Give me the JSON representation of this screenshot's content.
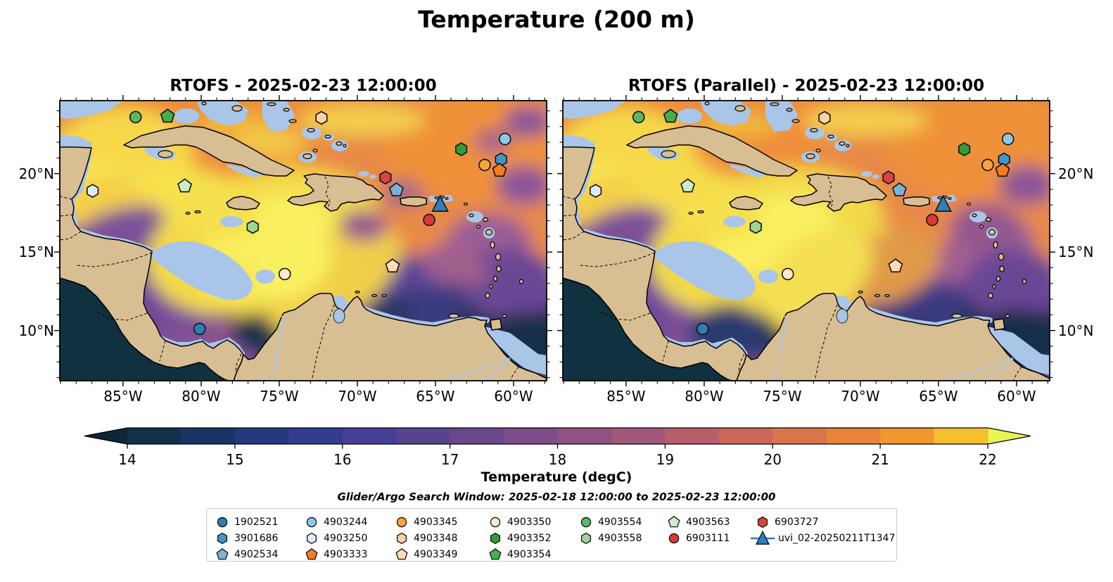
{
  "figure": {
    "title": "Temperature (200 m)"
  },
  "panels": [
    {
      "id": "rtofs",
      "title": "RTOFS - 2025-02-23 12:00:00",
      "y_label_side": "left"
    },
    {
      "id": "rtofs_parallel",
      "title": "RTOFS (Parallel) - 2025-02-23 12:00:00",
      "y_label_side": "right"
    }
  ],
  "axes": {
    "extent": {
      "lon_min": -89.05,
      "lon_max": -57.88,
      "lat_min": 6.8,
      "lat_max": 24.65
    },
    "x_ticks": [
      {
        "value": -85,
        "label": "85°W"
      },
      {
        "value": -80,
        "label": "80°W"
      },
      {
        "value": -75,
        "label": "75°W"
      },
      {
        "value": -70,
        "label": "70°W"
      },
      {
        "value": -65,
        "label": "65°W"
      },
      {
        "value": -60,
        "label": "60°W"
      }
    ],
    "y_ticks": [
      {
        "value": 20,
        "label": "20°N"
      },
      {
        "value": 15,
        "label": "15°N"
      },
      {
        "value": 10,
        "label": "10°N"
      }
    ]
  },
  "colorbar": {
    "label": "Temperature (degC)",
    "ticks": [
      14,
      15,
      16,
      17,
      18,
      19,
      20,
      21,
      22
    ],
    "segment_colors": [
      "#13304b",
      "#1a3465",
      "#24387f",
      "#323c90",
      "#444094",
      "#564491",
      "#69488e",
      "#7c4d89",
      "#8f5282",
      "#a25878",
      "#b65f6b",
      "#c8695c",
      "#d9754b",
      "#e8833a",
      "#f2962e",
      "#f5c030"
    ],
    "under_color": "#0b2838",
    "over_color": "#e9f452"
  },
  "subtitle": "Glider/Argo Search Window: 2025-02-18 12:00:00 to 2025-02-23 12:00:00",
  "map_colors": {
    "land": "#d8be93",
    "shallow": "#a9c6e8",
    "coastline": "#000000",
    "pacific_deep": "#103140"
  },
  "legend": {
    "columns": [
      [
        "1902521",
        "3901686",
        "4902534"
      ],
      [
        "4903244",
        "4903250",
        "4903333"
      ],
      [
        "4903345",
        "4903348",
        "4903349"
      ],
      [
        "4903350",
        "4903352",
        "4903354"
      ],
      [
        "4903554",
        "4903558"
      ],
      [
        "4903563",
        "6903111"
      ],
      [
        "6903727",
        "uvi_02-20250211T1347"
      ]
    ]
  },
  "chart_data": [
    {
      "type": "heatmap",
      "name": "RTOFS",
      "title": "RTOFS - 2025-02-23 12:00:00",
      "value_label": "Temperature (degC)",
      "vmin": 14,
      "vmax": 22,
      "colorbar_ticks": [
        14,
        15,
        16,
        17,
        18,
        19,
        20,
        21,
        22
      ],
      "lon_range": [
        -89.05,
        -57.88
      ],
      "lat_range": [
        6.8,
        24.65
      ]
    },
    {
      "type": "heatmap",
      "name": "RTOFS (Parallel)",
      "title": "RTOFS (Parallel) - 2025-02-23 12:00:00",
      "value_label": "Temperature (degC)",
      "vmin": 14,
      "vmax": 22,
      "colorbar_ticks": [
        14,
        15,
        16,
        17,
        18,
        19,
        20,
        21,
        22
      ],
      "lon_range": [
        -89.05,
        -57.88
      ],
      "lat_range": [
        6.8,
        24.65
      ]
    },
    {
      "type": "scatter",
      "name": "gliders_and_argo_floats",
      "points": [
        {
          "id": "1902521",
          "symbol": "circle",
          "color": "#2e7eb5",
          "lon": -80.1,
          "lat": 10.1
        },
        {
          "id": "3901686",
          "symbol": "hexagon",
          "color": "#4595c7",
          "lon": -60.8,
          "lat": 20.9
        },
        {
          "id": "4902534",
          "symbol": "pentagon",
          "color": "#7ab3d4",
          "lon": -67.5,
          "lat": 18.95
        },
        {
          "id": "4903244",
          "symbol": "circle",
          "color": "#8fc7e8",
          "lon": -60.55,
          "lat": 22.2
        },
        {
          "id": "4903250",
          "symbol": "hexagon",
          "color": "#ddecf8",
          "lon": -86.95,
          "lat": 18.9
        },
        {
          "id": "4903333",
          "symbol": "pentagon",
          "color": "#f57d20",
          "lon": -60.9,
          "lat": 20.2
        },
        {
          "id": "4903345",
          "symbol": "circle",
          "color": "#fba33c",
          "lon": -61.85,
          "lat": 20.55
        },
        {
          "id": "4903348",
          "symbol": "hexagon",
          "color": "#fdd1a0",
          "lon": -72.3,
          "lat": 23.55
        },
        {
          "id": "4903349",
          "symbol": "pentagon",
          "color": "#fddcb4",
          "lon": -67.75,
          "lat": 14.1
        },
        {
          "id": "4903350",
          "symbol": "circle",
          "color": "#fee9d0",
          "lon": -74.65,
          "lat": 13.6
        },
        {
          "id": "4903352",
          "symbol": "hexagon",
          "color": "#2f9e37",
          "lon": -63.35,
          "lat": 21.55
        },
        {
          "id": "4903354",
          "symbol": "pentagon",
          "color": "#44b04a",
          "lon": -82.15,
          "lat": 23.65
        },
        {
          "id": "4903554",
          "symbol": "circle",
          "color": "#5cb85f",
          "lon": -84.2,
          "lat": 23.6
        },
        {
          "id": "4903558",
          "symbol": "hexagon",
          "color": "#9cd796",
          "lon": -76.7,
          "lat": 16.6
        },
        {
          "id": "4903563",
          "symbol": "pentagon",
          "color": "#caecc6",
          "lon": -81.05,
          "lat": 19.2
        },
        {
          "id": "6903111",
          "symbol": "circle",
          "color": "#d93b33",
          "lon": -65.4,
          "lat": 17.05
        },
        {
          "id": "6903727",
          "symbol": "hexagon",
          "color": "#d8453e",
          "lon": -68.2,
          "lat": 19.75
        },
        {
          "id": "uvi_02-20250211T1347",
          "symbol": "triangle",
          "color": "#2e7fba",
          "lon": -64.7,
          "lat": 18.05
        }
      ]
    }
  ]
}
